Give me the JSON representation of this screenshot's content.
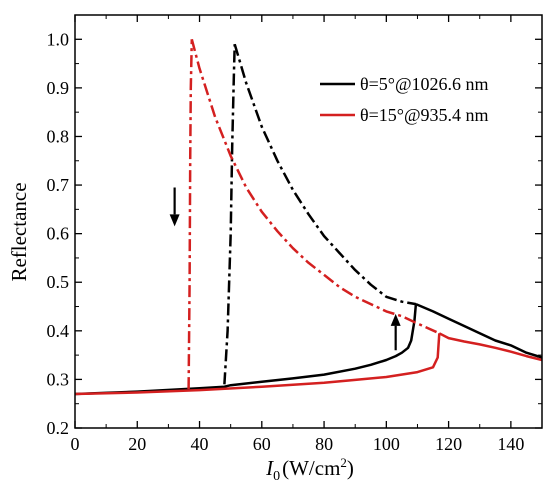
{
  "chart_data": {
    "type": "line",
    "xlabel": "I0 (W/cm2)",
    "xlabel_parts": {
      "symbol": "I",
      "subscript": "0",
      "unit_open": "(W/cm",
      "superscript": "2",
      "unit_close": ")"
    },
    "ylabel": "Reflectance",
    "xlim": [
      0,
      150
    ],
    "ylim": [
      0.2,
      1.05
    ],
    "xticks": [
      0,
      20,
      40,
      60,
      80,
      100,
      120,
      140
    ],
    "yticks": [
      0.2,
      0.3,
      0.4,
      0.5,
      0.6,
      0.7,
      0.8,
      0.9,
      1.0
    ],
    "xtick_labels": [
      "0",
      "20",
      "40",
      "60",
      "80",
      "100",
      "120",
      "140"
    ],
    "ytick_labels": [
      "0.2",
      "0.3",
      "0.4",
      "0.5",
      "0.6",
      "0.7",
      "0.8",
      "0.9",
      "1.0"
    ],
    "grid": false,
    "legend_position": "top-right",
    "series": [
      {
        "name": "θ=5°@1026.6 nm",
        "color": "#000000",
        "segments": [
          {
            "style": "solid",
            "x": [
              0,
              20,
              40,
              48,
              50,
              60,
              70,
              80,
              90,
              95,
              100,
              103,
              105,
              107,
              108,
              109,
              109.5
            ],
            "y": [
              0.27,
              0.275,
              0.282,
              0.285,
              0.288,
              0.295,
              0.302,
              0.31,
              0.322,
              0.33,
              0.34,
              0.348,
              0.355,
              0.365,
              0.38,
              0.42,
              0.455
            ]
          },
          {
            "style": "solid",
            "x": [
              109.5,
              115,
              120,
              125,
              130,
              135,
              140,
              145,
              150
            ],
            "y": [
              0.455,
              0.44,
              0.425,
              0.41,
              0.395,
              0.38,
              0.37,
              0.355,
              0.345
            ]
          },
          {
            "style": "dashdot",
            "x": [
              48,
              49,
              50,
              50.5,
              51,
              51.3
            ],
            "y": [
              0.29,
              0.4,
              0.6,
              0.78,
              0.92,
              0.99
            ]
          },
          {
            "style": "dashdot",
            "x": [
              51.3,
              55,
              60,
              65,
              70,
              75,
              80,
              85,
              90,
              95,
              100,
              105,
              109.5
            ],
            "y": [
              0.99,
              0.91,
              0.82,
              0.75,
              0.69,
              0.64,
              0.595,
              0.56,
              0.525,
              0.495,
              0.47,
              0.46,
              0.455
            ]
          }
        ]
      },
      {
        "name": "θ=15°@935.4 nm",
        "color": "#d42020",
        "segments": [
          {
            "style": "solid",
            "x": [
              0,
              20,
              40,
              60,
              80,
              100,
              110,
              115,
              116.5,
              117
            ],
            "y": [
              0.27,
              0.273,
              0.278,
              0.285,
              0.293,
              0.305,
              0.315,
              0.325,
              0.345,
              0.395
            ]
          },
          {
            "style": "solid",
            "x": [
              117,
              120,
              125,
              130,
              135,
              140,
              145,
              150
            ],
            "y": [
              0.395,
              0.385,
              0.378,
              0.372,
              0.365,
              0.357,
              0.348,
              0.34
            ]
          },
          {
            "style": "dashdot",
            "x": [
              36.5,
              36.8,
              37,
              37.2,
              37.5
            ],
            "y": [
              0.28,
              0.5,
              0.75,
              0.9,
              1.0
            ]
          },
          {
            "style": "dashdot",
            "x": [
              37.5,
              40,
              45,
              50,
              55,
              60,
              65,
              70,
              75,
              80,
              85,
              90,
              95,
              100,
              105,
              110,
              117
            ],
            "y": [
              1.0,
              0.94,
              0.84,
              0.76,
              0.695,
              0.645,
              0.605,
              0.57,
              0.54,
              0.515,
              0.49,
              0.47,
              0.455,
              0.44,
              0.43,
              0.415,
              0.395
            ]
          }
        ]
      }
    ],
    "annotations": [
      {
        "type": "arrow",
        "direction": "down",
        "x": 32,
        "y_from": 0.695,
        "y_to": 0.615,
        "color": "#000000"
      },
      {
        "type": "arrow",
        "direction": "up",
        "x": 103,
        "y_from": 0.36,
        "y_to": 0.435,
        "color": "#000000"
      }
    ]
  }
}
